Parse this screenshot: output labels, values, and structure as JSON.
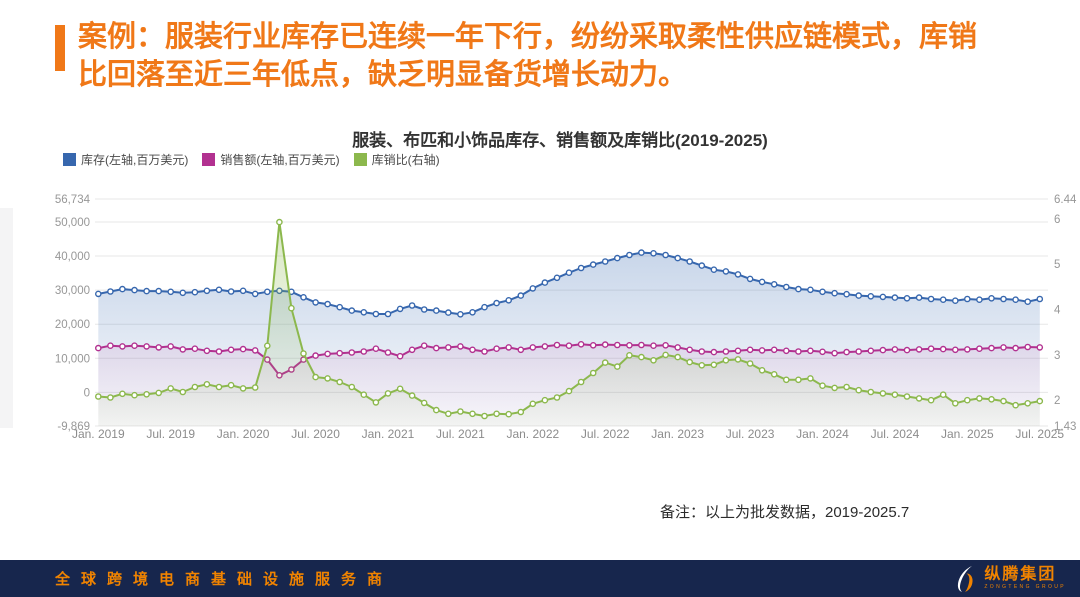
{
  "slide": {
    "title": "案例：服装行业库存已连续一年下行，纷纷采取柔性供应链模式，库销比回落至近三年低点，缺乏明显备货增长动力。",
    "accent_color": "#F07818"
  },
  "chart": {
    "title": "服装、布匹和小饰品库存、销售额及库销比(2019-2025)",
    "note": "备注：以上为批发数据，2019-2025.7"
  },
  "chart_data": {
    "type": "line",
    "title": "服装、布匹和小饰品库存、销售额及库销比(2019-2025)",
    "x_labels": [
      "Jan. 2019",
      "Jul. 2019",
      "Jan. 2020",
      "Jul. 2020",
      "Jan. 2021",
      "Jul. 2021",
      "Jan. 2022",
      "Jul. 2022",
      "Jan. 2023",
      "Jul. 2023",
      "Jan. 2024",
      "Jul. 2024",
      "Jan. 2025",
      "Jul. 2025"
    ],
    "x_label_interval_months": 6,
    "months": 79,
    "grid": true,
    "legend_position": "top-left",
    "left_axis": {
      "min": -9869,
      "max": 56734,
      "ticks": [
        56734,
        50000,
        40000,
        30000,
        20000,
        10000,
        0,
        -9869
      ]
    },
    "right_axis": {
      "min": 1.43,
      "max": 6.44,
      "ticks": [
        6.44,
        6,
        5,
        4,
        3,
        2,
        1.43
      ]
    },
    "series": [
      {
        "name": "库存(左轴,百万美元)",
        "axis": "left",
        "color": "#3767AE",
        "values": [
          28900,
          29600,
          30300,
          30000,
          29700,
          29700,
          29500,
          29200,
          29400,
          29800,
          30100,
          29600,
          29800,
          28900,
          29500,
          29800,
          29500,
          27900,
          26400,
          25900,
          25000,
          24000,
          23500,
          23000,
          23000,
          24500,
          25500,
          24300,
          24000,
          23400,
          22900,
          23500,
          25000,
          26200,
          27000,
          28400,
          30500,
          32200,
          33600,
          35100,
          36500,
          37500,
          38400,
          39400,
          40300,
          41000,
          40800,
          40300,
          39400,
          38400,
          37200,
          36000,
          35500,
          34600,
          33300,
          32400,
          31700,
          30900,
          30300,
          30100,
          29500,
          29100,
          28800,
          28400,
          28200,
          28000,
          27800,
          27600,
          27800,
          27400,
          27200,
          26900,
          27400,
          27200,
          27600,
          27400,
          27200,
          26600,
          27400
        ]
      },
      {
        "name": "销售额(左轴,百万美元)",
        "axis": "left",
        "color": "#B23190",
        "values": [
          13000,
          13700,
          13500,
          13700,
          13500,
          13200,
          13500,
          12600,
          12800,
          12200,
          12000,
          12500,
          12700,
          12300,
          9600,
          5000,
          6700,
          9600,
          10800,
          11300,
          11500,
          11700,
          12000,
          12800,
          11700,
          10600,
          12500,
          13700,
          13000,
          13200,
          13500,
          12500,
          12000,
          12800,
          13200,
          12500,
          13200,
          13500,
          13900,
          13700,
          14100,
          13800,
          14000,
          13900,
          13800,
          13900,
          13700,
          13800,
          13200,
          12500,
          12000,
          11800,
          12000,
          12200,
          12500,
          12300,
          12500,
          12200,
          12000,
          12200,
          11900,
          11500,
          11800,
          12000,
          12200,
          12400,
          12600,
          12400,
          12600,
          12800,
          12700,
          12500,
          12600,
          12800,
          13000,
          13200,
          13000,
          13300,
          13200
        ]
      },
      {
        "name": "库销比(右轴)",
        "axis": "right",
        "color": "#8CB84D",
        "values": [
          2.08,
          2.06,
          2.14,
          2.11,
          2.13,
          2.16,
          2.26,
          2.18,
          2.29,
          2.35,
          2.29,
          2.33,
          2.26,
          2.28,
          3.2,
          5.93,
          4.03,
          3.03,
          2.51,
          2.48,
          2.4,
          2.29,
          2.12,
          1.95,
          2.15,
          2.25,
          2.1,
          1.94,
          1.78,
          1.7,
          1.75,
          1.7,
          1.65,
          1.7,
          1.69,
          1.74,
          1.92,
          2.0,
          2.06,
          2.2,
          2.4,
          2.6,
          2.83,
          2.74,
          2.99,
          2.95,
          2.88,
          3.0,
          2.95,
          2.84,
          2.77,
          2.78,
          2.88,
          2.9,
          2.81,
          2.66,
          2.57,
          2.45,
          2.45,
          2.48,
          2.32,
          2.27,
          2.29,
          2.22,
          2.18,
          2.15,
          2.12,
          2.08,
          2.04,
          2.0,
          2.12,
          1.93,
          2.0,
          2.04,
          2.02,
          1.98,
          1.89,
          1.93,
          1.98
        ]
      }
    ]
  },
  "footer": {
    "tagline": "全球跨境电商基础设施服务商",
    "logo_text": "纵腾集团",
    "logo_subtext": "ZONGTENG GROUP"
  }
}
